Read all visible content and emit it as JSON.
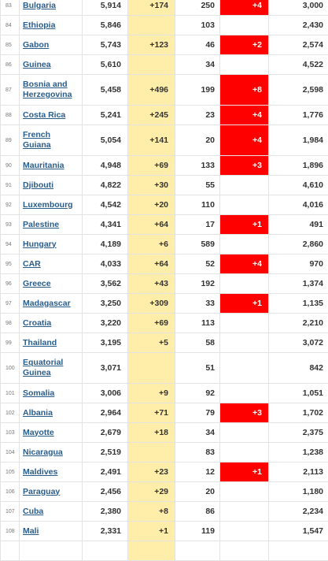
{
  "table": {
    "colors": {
      "new_cases_bg": "#ffeeaa",
      "new_deaths_bg": "#ff0000",
      "country_link": "#2a5c8a"
    },
    "rows": [
      {
        "rank": "83",
        "country": "Bulgaria",
        "total_cases": "5,914",
        "new_cases": "+174",
        "total_deaths": "250",
        "new_deaths": "+4",
        "recovered": "3,000"
      },
      {
        "rank": "84",
        "country": "Ethiopia",
        "total_cases": "5,846",
        "new_cases": "",
        "total_deaths": "103",
        "new_deaths": "",
        "recovered": "2,430"
      },
      {
        "rank": "85",
        "country": "Gabon",
        "total_cases": "5,743",
        "new_cases": "+123",
        "total_deaths": "46",
        "new_deaths": "+2",
        "recovered": "2,574"
      },
      {
        "rank": "86",
        "country": "Guinea",
        "total_cases": "5,610",
        "new_cases": "",
        "total_deaths": "34",
        "new_deaths": "",
        "recovered": "4,522"
      },
      {
        "rank": "87",
        "country": "Bosnia and Herzegovina",
        "total_cases": "5,458",
        "new_cases": "+496",
        "total_deaths": "199",
        "new_deaths": "+8",
        "recovered": "2,598",
        "tall": true
      },
      {
        "rank": "88",
        "country": "Costa Rica",
        "total_cases": "5,241",
        "new_cases": "+245",
        "total_deaths": "23",
        "new_deaths": "+4",
        "recovered": "1,776"
      },
      {
        "rank": "89",
        "country": "French Guiana",
        "total_cases": "5,054",
        "new_cases": "+141",
        "total_deaths": "20",
        "new_deaths": "+4",
        "recovered": "1,984",
        "tall": true
      },
      {
        "rank": "90",
        "country": "Mauritania",
        "total_cases": "4,948",
        "new_cases": "+69",
        "total_deaths": "133",
        "new_deaths": "+3",
        "recovered": "1,896"
      },
      {
        "rank": "91",
        "country": "Djibouti",
        "total_cases": "4,822",
        "new_cases": "+30",
        "total_deaths": "55",
        "new_deaths": "",
        "recovered": "4,610"
      },
      {
        "rank": "92",
        "country": "Luxembourg",
        "total_cases": "4,542",
        "new_cases": "+20",
        "total_deaths": "110",
        "new_deaths": "",
        "recovered": "4,016"
      },
      {
        "rank": "93",
        "country": "Palestine",
        "total_cases": "4,341",
        "new_cases": "+64",
        "total_deaths": "17",
        "new_deaths": "+1",
        "recovered": "491"
      },
      {
        "rank": "94",
        "country": "Hungary",
        "total_cases": "4,189",
        "new_cases": "+6",
        "total_deaths": "589",
        "new_deaths": "",
        "recovered": "2,860"
      },
      {
        "rank": "95",
        "country": "CAR",
        "total_cases": "4,033",
        "new_cases": "+64",
        "total_deaths": "52",
        "new_deaths": "+4",
        "recovered": "970"
      },
      {
        "rank": "96",
        "country": "Greece",
        "total_cases": "3,562",
        "new_cases": "+43",
        "total_deaths": "192",
        "new_deaths": "",
        "recovered": "1,374"
      },
      {
        "rank": "97",
        "country": "Madagascar",
        "total_cases": "3,250",
        "new_cases": "+309",
        "total_deaths": "33",
        "new_deaths": "+1",
        "recovered": "1,135"
      },
      {
        "rank": "98",
        "country": "Croatia",
        "total_cases": "3,220",
        "new_cases": "+69",
        "total_deaths": "113",
        "new_deaths": "",
        "recovered": "2,210"
      },
      {
        "rank": "99",
        "country": "Thailand",
        "total_cases": "3,195",
        "new_cases": "+5",
        "total_deaths": "58",
        "new_deaths": "",
        "recovered": "3,072"
      },
      {
        "rank": "100",
        "country": "Equatorial Guinea",
        "total_cases": "3,071",
        "new_cases": "",
        "total_deaths": "51",
        "new_deaths": "",
        "recovered": "842",
        "tall": true
      },
      {
        "rank": "101",
        "country": "Somalia",
        "total_cases": "3,006",
        "new_cases": "+9",
        "total_deaths": "92",
        "new_deaths": "",
        "recovered": "1,051"
      },
      {
        "rank": "102",
        "country": "Albania",
        "total_cases": "2,964",
        "new_cases": "+71",
        "total_deaths": "79",
        "new_deaths": "+3",
        "recovered": "1,702"
      },
      {
        "rank": "103",
        "country": "Mayotte",
        "total_cases": "2,679",
        "new_cases": "+18",
        "total_deaths": "34",
        "new_deaths": "",
        "recovered": "2,375"
      },
      {
        "rank": "104",
        "country": "Nicaragua",
        "total_cases": "2,519",
        "new_cases": "",
        "total_deaths": "83",
        "new_deaths": "",
        "recovered": "1,238"
      },
      {
        "rank": "105",
        "country": "Maldives",
        "total_cases": "2,491",
        "new_cases": "+23",
        "total_deaths": "12",
        "new_deaths": "+1",
        "recovered": "2,113"
      },
      {
        "rank": "106",
        "country": "Paraguay",
        "total_cases": "2,456",
        "new_cases": "+29",
        "total_deaths": "20",
        "new_deaths": "",
        "recovered": "1,180"
      },
      {
        "rank": "107",
        "country": "Cuba",
        "total_cases": "2,380",
        "new_cases": "+8",
        "total_deaths": "86",
        "new_deaths": "",
        "recovered": "2,234"
      },
      {
        "rank": "108",
        "country": "Mali",
        "total_cases": "2,331",
        "new_cases": "+1",
        "total_deaths": "119",
        "new_deaths": "",
        "recovered": "1,547"
      },
      {
        "rank": "",
        "country": "",
        "total_cases": "",
        "new_cases": "",
        "total_deaths": "",
        "new_deaths": "",
        "recovered": ""
      }
    ]
  }
}
